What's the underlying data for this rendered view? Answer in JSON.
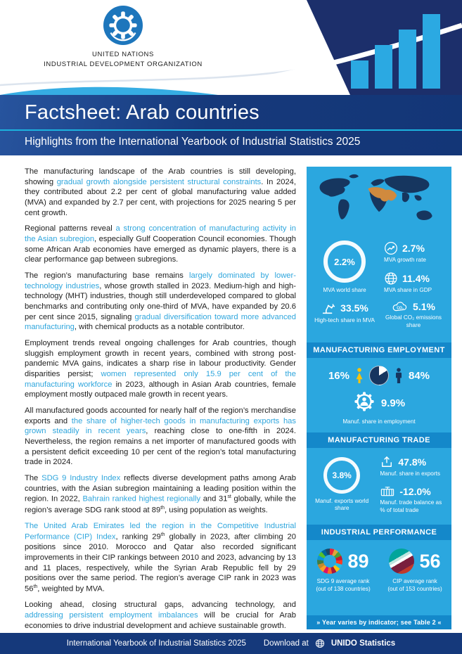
{
  "header": {
    "org_line1": "UNITED NATIONS",
    "org_line2": "INDUSTRIAL DEVELOPMENT ORGANIZATION"
  },
  "banner": {
    "title": "Factsheet: Arab countries",
    "subtitle": "Highlights from the International Yearbook of Industrial Statistics 2025"
  },
  "article": {
    "paragraphs": [
      {
        "segments": [
          {
            "t": "The manufacturing landscape of the Arab countries is still developing, showing ",
            "s": ""
          },
          {
            "t": "gradual growth alongside persistent structural constraints",
            "s": "hl"
          },
          {
            "t": ". In 2024, they contributed about 2.2 per cent of global manufacturing value added (MVA) and expanded by 2.7 per cent, with projections for 2025 nearing 5 per cent growth.",
            "s": ""
          }
        ]
      },
      {
        "segments": [
          {
            "t": "Regional patterns reveal ",
            "s": ""
          },
          {
            "t": "a strong concentration of manufacturing activity in the Asian subregion",
            "s": "hl"
          },
          {
            "t": ", especially Gulf Cooperation Council economies. Though some African Arab economies have emerged as dynamic players, there is a clear performance gap between subregions.",
            "s": ""
          }
        ]
      },
      {
        "segments": [
          {
            "t": "The region’s manufacturing base remains ",
            "s": ""
          },
          {
            "t": "largely dominated by lower-technology industries",
            "s": "hl"
          },
          {
            "t": ", whose growth stalled in 2023. Medium-high and high-technology (MHT) industries, though still underdeveloped compared to global benchmarks and contributing only one-third of MVA, have expanded by 20.6 per cent since 2015, signaling ",
            "s": ""
          },
          {
            "t": "gradual diversification toward more advanced manufacturing",
            "s": "hl"
          },
          {
            "t": ", with chemical products as a notable contributor.",
            "s": ""
          }
        ]
      },
      {
        "segments": [
          {
            "t": "Employment trends reveal ongoing challenges for Arab countries, though sluggish employment growth in recent years, combined with strong post-pandemic MVA gains, indicates a sharp rise in labour productivity. Gender disparities persist; ",
            "s": ""
          },
          {
            "t": "women represented only 15.9 per cent of the manufacturing workforce",
            "s": "hl"
          },
          {
            "t": " in 2023, although in Asian Arab countries, female employment mostly outpaced male growth in recent years.",
            "s": ""
          }
        ]
      },
      {
        "segments": [
          {
            "t": "All manufactured goods accounted for nearly half of the region’s merchandise exports and ",
            "s": ""
          },
          {
            "t": "the share of higher-tech goods in manufacturing exports has grown steadily in recent years",
            "s": "hl"
          },
          {
            "t": ", reaching close to one-fifth in 2024. Nevertheless, the region remains a net importer of manufactured goods with a persistent deficit exceeding 10 per cent of the region’s total manufacturing trade in 2024.",
            "s": ""
          }
        ]
      },
      {
        "segments": [
          {
            "t": "The ",
            "s": ""
          },
          {
            "t": "SDG 9 Industry Index",
            "s": "hl"
          },
          {
            "t": " reflects diverse development paths among Arab countries, with the Asian subregion maintaining a leading position within the region. In 2022, ",
            "s": ""
          },
          {
            "t": "Bahrain ranked highest regionally",
            "s": "hl"
          },
          {
            "t": " and 31",
            "s": ""
          },
          {
            "t": "st",
            "s": "sup"
          },
          {
            "t": " globally, while the region’s average SDG rank stood at 89",
            "s": ""
          },
          {
            "t": "th",
            "s": "sup"
          },
          {
            "t": ", using population as weights.",
            "s": ""
          }
        ]
      },
      {
        "segments": [
          {
            "t": "The United Arab Emirates led the region in the Competitive Industrial Performance (CIP) Index",
            "s": "hl"
          },
          {
            "t": ", ranking 29",
            "s": ""
          },
          {
            "t": "th",
            "s": "sup"
          },
          {
            "t": " globally in 2023, after climbing 20 positions since 2010. Morocco and Qatar also recorded significant improvements in their CIP rankings between 2010 and 2023, advancing by 13 and 11 places, respectively, while the Syrian Arab Republic fell by 29 positions over the same period. The region’s average CIP rank in 2023 was 56",
            "s": ""
          },
          {
            "t": "th",
            "s": "sup"
          },
          {
            "t": ", weighted by MVA.",
            "s": ""
          }
        ]
      },
      {
        "segments": [
          {
            "t": "Looking ahead, closing structural gaps, advancing technology, and ",
            "s": ""
          },
          {
            "t": "addressing persistent employment imbalances",
            "s": "hl"
          },
          {
            "t": " will be crucial for Arab economies to drive industrial development and achieve sustainable growth.",
            "s": ""
          }
        ]
      }
    ]
  },
  "panel": {
    "top": {
      "mva_world_share": {
        "value": "2.2%",
        "label": "MVA world share"
      },
      "mva_growth": {
        "value": "2.7%",
        "label": "MVA growth rate"
      },
      "mva_gdp": {
        "value": "11.4%",
        "label": "MVA share in GDP"
      },
      "high_tech": {
        "value": "33.5%",
        "label": "High-tech share in MVA"
      },
      "co2": {
        "value": "5.1%",
        "label": "Global CO₂ emissions share"
      }
    },
    "employment": {
      "header": "MANUFACTURING EMPLOYMENT",
      "female_share": "16%",
      "male_share": "84%",
      "female_pct": 16,
      "share_value": "9.9%",
      "share_label": "Manuf. share in employment"
    },
    "trade": {
      "header": "MANUFACTURING TRADE",
      "exports_world_share": {
        "value": "3.8%",
        "label": "Manuf. exports world share"
      },
      "share_in_exports": {
        "value": "47.8%",
        "label": "Manuf. share in exports"
      },
      "trade_balance": {
        "value": "-12.0%",
        "label": "Manuf. trade balance as % of total trade"
      }
    },
    "performance": {
      "header": "INDUSTRIAL PERFORMANCE",
      "sdg": {
        "value": "89",
        "label": "SDG 9 average rank",
        "sublabel": "(out of 138 countries)"
      },
      "cip": {
        "value": "56",
        "label": "CIP average rank",
        "sublabel": "(out of 153 countries)"
      }
    },
    "note": "» Year varies by indicator; see Table 2 «"
  },
  "footer": {
    "left": "International Yearbook of Industrial Statistics 2025",
    "download_label": "Download at",
    "link": "UNIDO Statistics"
  },
  "colors": {
    "accent_cyan": "#2FA6DD",
    "panel_blue": "#2BA7DF",
    "navy": "#16355F",
    "female_yellow": "#F6C40F",
    "arab_orange": "#D08A3E"
  }
}
